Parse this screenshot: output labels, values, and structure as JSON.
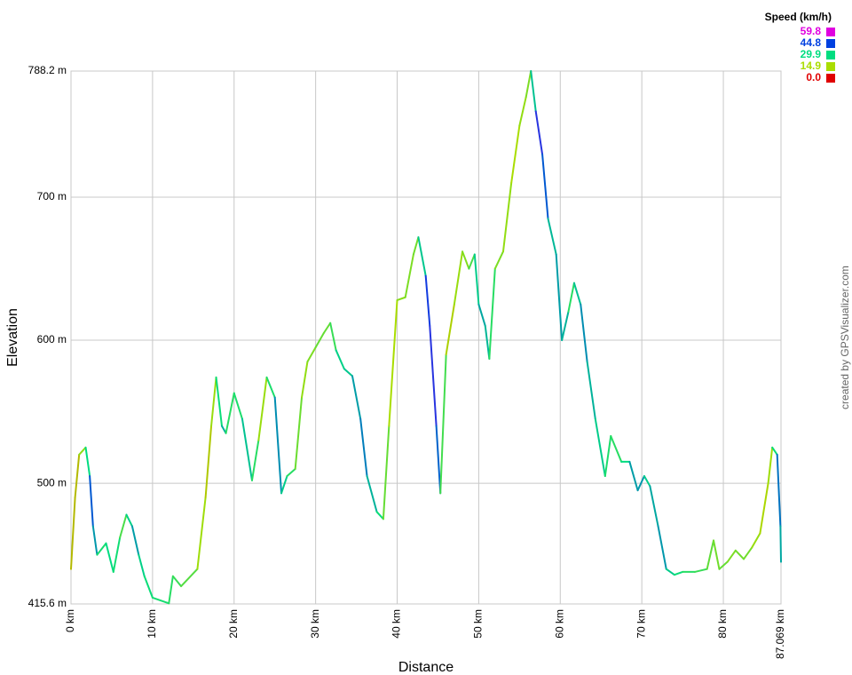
{
  "chart_data": {
    "type": "line",
    "y_label": "Elevation",
    "x_label": "Distance",
    "credit": "created by GPSVisualizer.com",
    "xlim": [
      0,
      87.069
    ],
    "ylim": [
      415.6,
      788.2
    ],
    "xticks": [
      {
        "value": 0,
        "label": "0 km"
      },
      {
        "value": 10,
        "label": "10 km"
      },
      {
        "value": 20,
        "label": "20 km"
      },
      {
        "value": 30,
        "label": "30 km"
      },
      {
        "value": 40,
        "label": "40 km"
      },
      {
        "value": 50,
        "label": "50 km"
      },
      {
        "value": 60,
        "label": "60 km"
      },
      {
        "value": 70,
        "label": "70 km"
      },
      {
        "value": 80,
        "label": "80 km"
      },
      {
        "value": 87.069,
        "label": "87.069 km"
      }
    ],
    "yticks": [
      {
        "value": 415.6,
        "label": "415.6 m"
      },
      {
        "value": 500,
        "label": "500 m"
      },
      {
        "value": 600,
        "label": "600 m"
      },
      {
        "value": 700,
        "label": "700 m"
      },
      {
        "value": 788.2,
        "label": "788.2 m"
      }
    ],
    "grid": true,
    "speed_scale": {
      "title": "Speed (km/h)",
      "stops": [
        {
          "value": 59.8,
          "color": "#e000e0"
        },
        {
          "value": 44.8,
          "color": "#0040e0"
        },
        {
          "value": 29.9,
          "color": "#00dd80"
        },
        {
          "value": 14.9,
          "color": "#aadd00"
        },
        {
          "value": 0,
          "label": "0.0",
          "color": "#e00000"
        }
      ]
    },
    "x": [
      0,
      0.5,
      1,
      1.8,
      2.3,
      2.7,
      3.2,
      4.3,
      5.2,
      6,
      6.8,
      7.5,
      8.3,
      9,
      10,
      12,
      12.5,
      13.5,
      15.5,
      16.5,
      17.2,
      17.8,
      18.5,
      19,
      20,
      21,
      22.2,
      23,
      24,
      25,
      25.8,
      26.5,
      27.5,
      28.3,
      29,
      30,
      31,
      31.8,
      32.5,
      33.5,
      34.5,
      35.5,
      36.3,
      37.5,
      38.3,
      39,
      40,
      41,
      42,
      42.6,
      43.5,
      44,
      44.8,
      45.3,
      46,
      47,
      48,
      48.8,
      49.5,
      50,
      50.8,
      51.3,
      52,
      53,
      54,
      55,
      55.8,
      56.4,
      57,
      57.8,
      58.5,
      59.5,
      60.2,
      61,
      61.7,
      62.5,
      63.3,
      64.3,
      65.5,
      66.2,
      67.5,
      68.5,
      69.5,
      70.3,
      71,
      72,
      73,
      74,
      75,
      76.5,
      78,
      78.8,
      79.5,
      80.5,
      81.5,
      82.5,
      83.5,
      84.5,
      85.5,
      86,
      86.6,
      87,
      87.069
    ],
    "values": [
      440,
      490,
      520,
      525,
      505,
      470,
      450,
      458,
      438,
      462,
      478,
      470,
      450,
      435,
      420,
      416,
      435,
      428,
      440,
      490,
      540,
      574,
      540,
      535,
      563,
      545,
      502,
      530,
      574,
      560,
      493,
      505,
      510,
      560,
      585,
      595,
      605,
      612,
      593,
      580,
      575,
      545,
      505,
      480,
      475,
      540,
      628,
      630,
      660,
      672,
      645,
      610,
      540,
      493,
      590,
      625,
      662,
      650,
      660,
      625,
      610,
      587,
      650,
      662,
      710,
      750,
      770,
      788.2,
      760,
      730,
      685,
      660,
      600,
      620,
      640,
      625,
      585,
      545,
      505,
      533,
      515,
      515,
      495,
      505,
      498,
      470,
      440,
      436,
      438,
      438,
      440,
      460,
      440,
      445,
      453,
      447,
      455,
      465,
      500,
      525,
      520,
      470,
      445
    ],
    "speed": [
      15,
      10,
      15,
      20,
      40,
      45,
      28,
      28,
      32,
      25,
      22,
      40,
      32,
      30,
      28,
      28,
      25,
      25,
      20,
      12,
      15,
      18,
      40,
      28,
      25,
      30,
      35,
      18,
      15,
      40,
      35,
      28,
      25,
      16,
      18,
      20,
      22,
      20,
      30,
      32,
      32,
      40,
      38,
      30,
      28,
      14,
      16,
      20,
      18,
      22,
      42,
      50,
      45,
      38,
      10,
      18,
      15,
      22,
      25,
      38,
      32,
      35,
      18,
      20,
      14,
      16,
      18,
      20,
      45,
      50,
      35,
      32,
      40,
      28,
      25,
      40,
      35,
      33,
      30,
      25,
      28,
      32,
      40,
      33,
      30,
      40,
      33,
      30,
      28,
      25,
      25,
      18,
      22,
      20,
      18,
      22,
      18,
      15,
      14,
      18,
      40,
      40,
      30
    ]
  }
}
